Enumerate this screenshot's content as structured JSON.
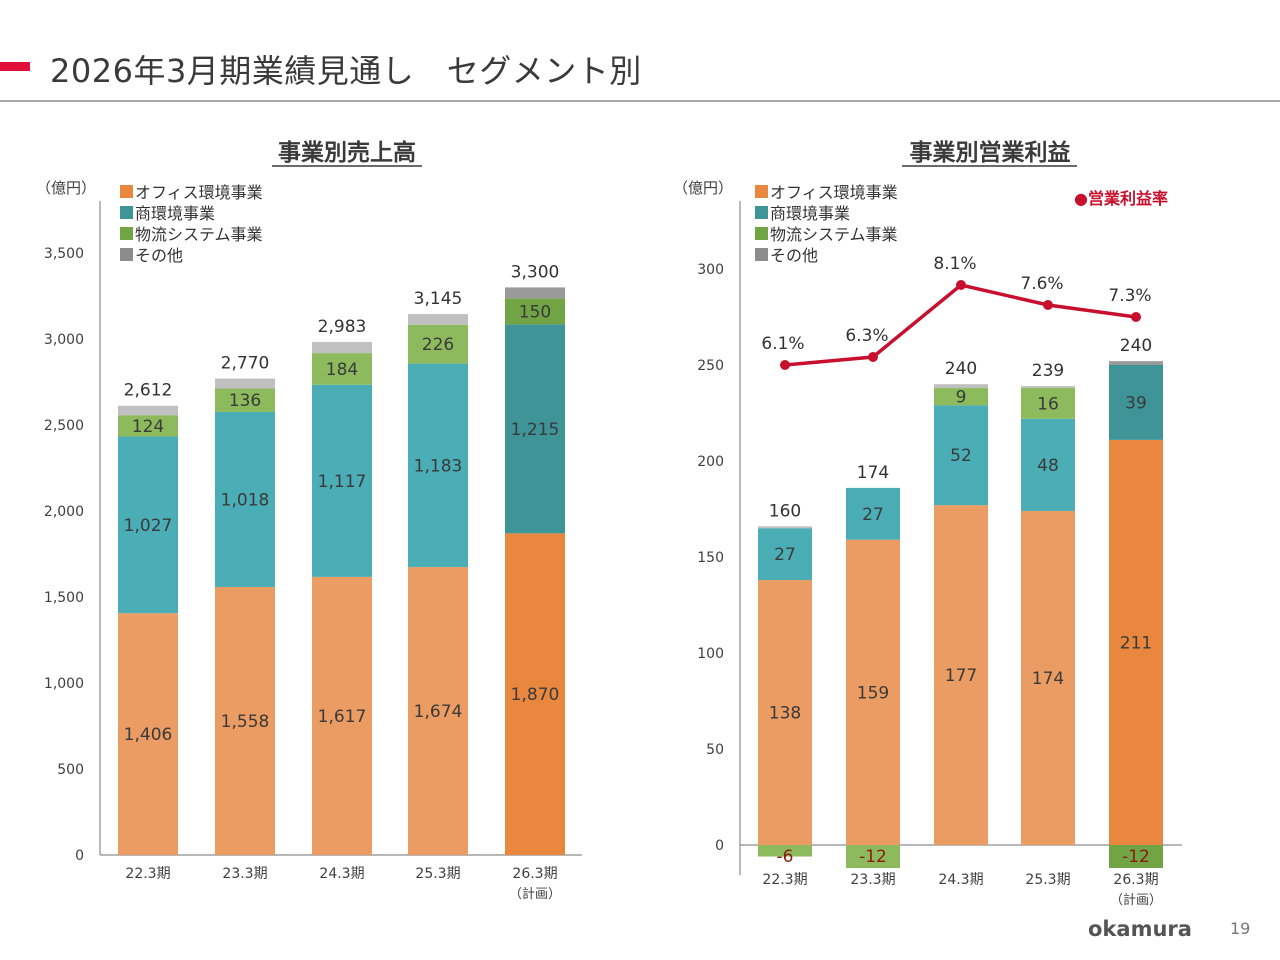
{
  "page": {
    "title": "2026年3月期業績見通し　セグメント別",
    "logo": "okamura",
    "page_number": "19",
    "accent_color": "#e0103b"
  },
  "colors": {
    "office": "#eb9c63",
    "office_plan": "#e8873d",
    "store": "#4badb5",
    "store_plan": "#3f9497",
    "logistics": "#8cba5c",
    "logistics_plan": "#70a445",
    "other": "#c0c0c0",
    "other_plan": "#9a9a9a",
    "rate_line": "#c8102e",
    "legend_office": "#e8873d",
    "legend_store": "#3f9497",
    "legend_logistics": "#70a445",
    "legend_other": "#8c8c8c"
  },
  "chart_data": [
    {
      "type": "bar",
      "stacked": true,
      "title": "事業別売上高",
      "unit_label": "（億円）",
      "categories": [
        "22.3期",
        "23.3期",
        "24.3期",
        "25.3期",
        "26.3期"
      ],
      "category_notes": [
        "",
        "",
        "",
        "",
        "（計画）"
      ],
      "ylim": [
        0,
        3500
      ],
      "yticks": [
        0,
        500,
        1000,
        1500,
        2000,
        2500,
        3000,
        3500
      ],
      "ytick_labels": [
        "0",
        "500",
        "1,000",
        "1,500",
        "2,000",
        "2,500",
        "3,000",
        "3,500"
      ],
      "legend": [
        "オフィス環境事業",
        "商環境事業",
        "物流システム事業",
        "その他"
      ],
      "legend_position": "top-left",
      "series": [
        {
          "name": "オフィス環境事業",
          "key": "office",
          "values": [
            1406,
            1558,
            1617,
            1674,
            1870
          ],
          "labels": [
            "1,406",
            "1,558",
            "1,617",
            "1,674",
            "1,870"
          ]
        },
        {
          "name": "商環境事業",
          "key": "store",
          "values": [
            1027,
            1018,
            1117,
            1183,
            1215
          ],
          "labels": [
            "1,027",
            "1,018",
            "1,117",
            "1,183",
            "1,215"
          ]
        },
        {
          "name": "物流システム事業",
          "key": "logistics",
          "values": [
            124,
            136,
            184,
            226,
            150
          ],
          "labels": [
            "124",
            "136",
            "184",
            "226",
            "150"
          ]
        },
        {
          "name": "その他",
          "key": "other",
          "values": [
            55,
            58,
            65,
            62,
            65
          ],
          "labels": [
            "",
            "",
            "",
            "",
            ""
          ]
        }
      ],
      "totals": [
        2612,
        2770,
        2983,
        3145,
        3300
      ],
      "total_labels": [
        "2,612",
        "2,770",
        "2,983",
        "3,145",
        "3,300"
      ],
      "highlight_last_as_plan": true
    },
    {
      "type": "bar",
      "stacked": true,
      "title": "事業別営業利益",
      "unit_label": "（億円）",
      "categories": [
        "22.3期",
        "23.3期",
        "24.3期",
        "25.3期",
        "26.3期"
      ],
      "category_notes": [
        "",
        "",
        "",
        "",
        "（計画）"
      ],
      "ylim": [
        -12,
        300
      ],
      "yticks": [
        0,
        50,
        100,
        150,
        200,
        250,
        300
      ],
      "ytick_labels": [
        "0",
        "50",
        "100",
        "150",
        "200",
        "250",
        "300"
      ],
      "legend": [
        "オフィス環境事業",
        "商環境事業",
        "物流システム事業",
        "その他"
      ],
      "legend_position": "top-left",
      "series": [
        {
          "name": "オフィス環境事業",
          "key": "office",
          "values": [
            138,
            159,
            177,
            174,
            211
          ],
          "labels": [
            "138",
            "159",
            "177",
            "174",
            "211"
          ]
        },
        {
          "name": "商環境事業",
          "key": "store",
          "values": [
            27,
            27,
            52,
            48,
            39
          ],
          "labels": [
            "27",
            "27",
            "52",
            "48",
            "39"
          ]
        },
        {
          "name": "物流システム事業",
          "key": "logistics",
          "values": [
            -6,
            -12,
            9,
            16,
            -12
          ],
          "labels": [
            "-6",
            "-12",
            "9",
            "16",
            "-12"
          ]
        },
        {
          "name": "その他",
          "key": "other",
          "values": [
            1,
            0,
            2,
            1,
            2
          ],
          "labels": [
            "",
            "",
            "",
            "",
            ""
          ]
        }
      ],
      "totals": [
        160,
        174,
        240,
        239,
        240
      ],
      "total_labels": [
        "160",
        "174",
        "240",
        "239",
        "240"
      ],
      "line_series": {
        "name": "営業利益率",
        "legend": "●営業利益率",
        "legend_position": "top-right",
        "values": [
          6.1,
          6.3,
          8.1,
          7.6,
          7.3
        ],
        "labels": [
          "6.1%",
          "6.3%",
          "8.1%",
          "7.6%",
          "7.3%"
        ],
        "unit": "%"
      },
      "highlight_last_as_plan": true
    }
  ]
}
